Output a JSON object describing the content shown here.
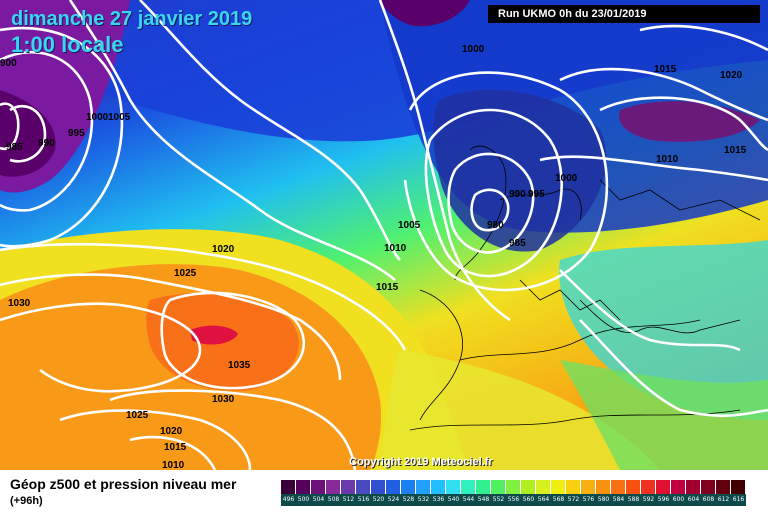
{
  "header": {
    "date_title": "dimanche 27 janvier 2019",
    "time_title": "1:00 locale",
    "run_info": "Run UKMO 0h du 23/01/2019"
  },
  "footer": {
    "title": "Géop z500 et pression niveau mer",
    "subtitle": "(+96h)",
    "copyright": "Copyright 2019 Meteociel.fr"
  },
  "isobar_labels": [
    "1000",
    "1000",
    "1005",
    "995",
    "990",
    "985",
    "1015",
    "1020",
    "1010",
    "1015",
    "1000",
    "990",
    "995",
    "980",
    "985",
    "1005",
    "1010",
    "1015",
    "1020",
    "1025",
    "1030",
    "1035",
    "1030",
    "1025",
    "1020",
    "1015",
    "1010",
    "900"
  ],
  "legend": {
    "values": [
      "496",
      "500",
      "504",
      "508",
      "512",
      "516",
      "520",
      "524",
      "528",
      "532",
      "536",
      "540",
      "544",
      "548",
      "552",
      "556",
      "560",
      "564",
      "568",
      "572",
      "576",
      "580",
      "584",
      "588",
      "592",
      "596",
      "600",
      "604",
      "608",
      "612",
      "616"
    ],
    "colors": [
      "#3a003a",
      "#55005a",
      "#70107a",
      "#8a2a9a",
      "#6a3aaa",
      "#4a4ac0",
      "#3050d0",
      "#2060e0",
      "#1a80f0",
      "#20a0ff",
      "#20c0ff",
      "#30e0f0",
      "#30f0c0",
      "#30f090",
      "#50f060",
      "#80f040",
      "#b0f020",
      "#d8f020",
      "#f0f010",
      "#f8d010",
      "#f8b010",
      "#f89010",
      "#f87010",
      "#f85010",
      "#f03020",
      "#e01030",
      "#c00040",
      "#a00030",
      "#800020",
      "#600010",
      "#400000"
    ]
  }
}
